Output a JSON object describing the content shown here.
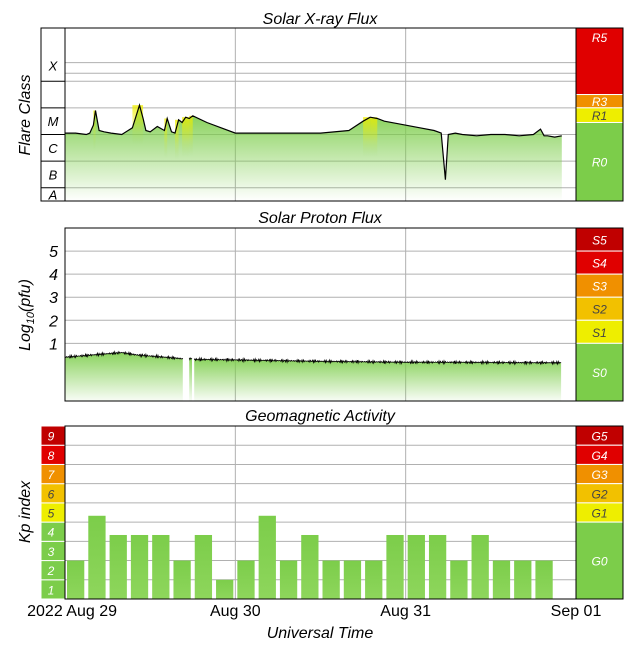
{
  "colors": {
    "green": "#7CCD4A",
    "yellow": "#EEEE00",
    "gold": "#F2C100",
    "orange": "#F09000",
    "red_orange": "#F05000",
    "red": "#E00000",
    "dark_red": "#C00000",
    "grid": "#B0B0B0",
    "frame": "#000000"
  },
  "x_axis": {
    "label": "Universal Time",
    "ticks": [
      "2022 Aug 29",
      "Aug 30",
      "Aug 31",
      "Sep 01"
    ],
    "tick_hours": [
      0,
      24,
      48,
      72
    ],
    "range_hours": [
      0,
      72
    ]
  },
  "chart_data": [
    {
      "type": "line",
      "title": "Solar X-ray Flux",
      "ylabel": "Flare Class",
      "classes": [
        "A",
        "B",
        "C",
        "M",
        "X"
      ],
      "scale": "log",
      "ylim": [
        -8.5,
        -2
      ],
      "xlim_hours": [
        0,
        72
      ],
      "x": [
        0,
        1.5,
        3,
        3.5,
        4,
        4.3,
        4.8,
        5.5,
        6.5,
        8,
        9.5,
        10.5,
        11,
        11.4,
        12,
        13,
        14,
        14.4,
        15,
        15.5,
        16,
        16.5,
        17,
        17.5,
        18,
        20,
        22,
        24,
        28,
        32,
        36,
        40,
        42,
        43,
        44,
        45,
        47,
        50,
        52,
        53,
        53.6,
        54,
        55,
        56,
        58,
        60,
        62,
        64,
        66,
        67,
        67.5,
        68,
        69,
        70
      ],
      "y": [
        -5.95,
        -5.95,
        -6.0,
        -5.95,
        -5.65,
        -5.1,
        -5.85,
        -5.9,
        -5.95,
        -6.0,
        -5.75,
        -4.9,
        -5.4,
        -5.85,
        -5.9,
        -5.7,
        -5.85,
        -5.4,
        -5.9,
        -5.95,
        -5.45,
        -5.55,
        -5.35,
        -5.4,
        -5.3,
        -5.55,
        -5.75,
        -5.95,
        -5.95,
        -5.95,
        -5.95,
        -5.85,
        -5.5,
        -5.35,
        -5.4,
        -5.5,
        -5.6,
        -5.75,
        -5.85,
        -5.95,
        -7.7,
        -6.0,
        -5.95,
        -6.0,
        -6.05,
        -6.0,
        -6.0,
        -6.05,
        -6.0,
        -5.8,
        -6.05,
        -6.05,
        -6.1,
        -6.05
      ],
      "scale_labels": [
        "R5",
        "R3",
        "R1",
        "R0"
      ],
      "scale_colors": [
        "#E00000",
        "#F09000",
        "#EEEE00",
        "#7CCD4A"
      ]
    },
    {
      "type": "area",
      "title": "Solar Proton Flux",
      "ylabel": "Log10(pfu)",
      "ylim": [
        -1.5,
        6
      ],
      "yticks": [
        1,
        2,
        3,
        4,
        5
      ],
      "xlim_hours": [
        0,
        72
      ],
      "x": [
        0,
        2,
        4,
        6,
        8,
        10,
        12,
        14,
        16,
        17.3,
        17.8,
        18,
        20,
        24,
        30,
        36,
        42,
        48,
        54,
        60,
        66,
        70
      ],
      "y": [
        0.4,
        0.45,
        0.5,
        0.55,
        0.6,
        0.5,
        0.45,
        0.4,
        0.35,
        0.3,
        0.35,
        0.3,
        0.3,
        0.28,
        0.25,
        0.22,
        0.2,
        0.18,
        0.18,
        0.17,
        0.16,
        0.16
      ],
      "gaps_hours": [
        [
          16.6,
          17.4
        ],
        [
          17.9,
          18.1
        ]
      ],
      "scale_labels": [
        "S5",
        "S4",
        "S3",
        "S2",
        "S1",
        "S0"
      ],
      "scale_colors": [
        "#C00000",
        "#E00000",
        "#F09000",
        "#F2C100",
        "#EEEE00",
        "#7CCD4A"
      ]
    },
    {
      "type": "bar",
      "title": "Geomagnetic Activity",
      "ylabel": "Kp index",
      "ylim": [
        0,
        9
      ],
      "yticks": [
        1,
        2,
        3,
        4,
        5,
        6,
        7,
        8,
        9
      ],
      "ytick_colors": [
        "#7CCD4A",
        "#7CCD4A",
        "#7CCD4A",
        "#7CCD4A",
        "#EEEE00",
        "#F2C100",
        "#F09000",
        "#E00000",
        "#C00000"
      ],
      "bar_hours": [
        0,
        3,
        6,
        9,
        12,
        15,
        18,
        21,
        24,
        27,
        30,
        33,
        36,
        39,
        42,
        45,
        48,
        51,
        54,
        57,
        60,
        63,
        66,
        69
      ],
      "values": [
        2,
        4.33,
        3.33,
        3.33,
        3.33,
        2,
        3.33,
        1,
        2,
        4.33,
        2,
        3.33,
        2,
        2,
        2,
        3.33,
        3.33,
        3.33,
        2,
        3.33,
        2,
        2,
        2,
        0
      ],
      "scale_labels": [
        "G5",
        "G4",
        "G3",
        "G2",
        "G1",
        "G0"
      ],
      "scale_colors": [
        "#C00000",
        "#E00000",
        "#F09000",
        "#F2C100",
        "#EEEE00",
        "#7CCD4A"
      ]
    }
  ]
}
